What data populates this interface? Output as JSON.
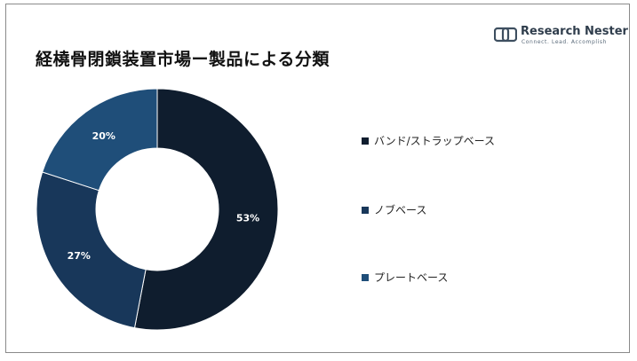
{
  "title": "経橈骨閉鎖装置市場ー製品による分類",
  "logo": {
    "name": "Research Nester",
    "tagline": "Connect. Lead. Accomplish",
    "icon": "research-nester-logo-icon"
  },
  "colors": {
    "navy": "#0f1d2e",
    "dark_blue": "#18375a",
    "mid_blue": "#1f4e79",
    "frame": "#8a8a8a"
  },
  "chart_data": {
    "type": "pie",
    "donut": true,
    "categories": [
      "バンド/ストラップベース",
      "ノブベース",
      "プレートベース"
    ],
    "values": [
      53,
      27,
      20
    ],
    "value_labels": [
      "53%",
      "27%",
      "20%"
    ],
    "colors": [
      "#0f1d2e",
      "#18375a",
      "#1f4e79"
    ],
    "legend_position": "right"
  }
}
